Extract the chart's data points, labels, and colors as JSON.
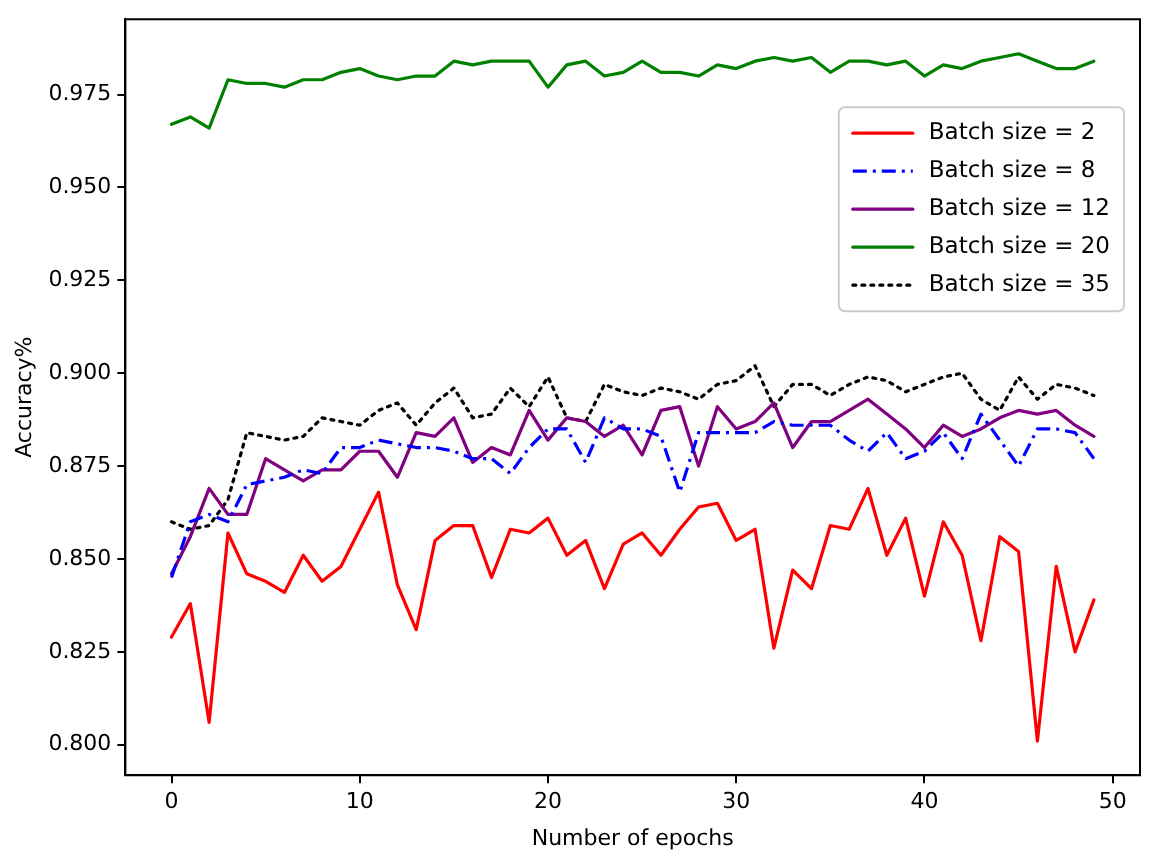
{
  "chart_data": {
    "type": "line",
    "xlabel": "Number of epochs",
    "ylabel": "Accuracy%",
    "x": [
      0,
      1,
      2,
      3,
      4,
      5,
      6,
      7,
      8,
      9,
      10,
      11,
      12,
      13,
      14,
      15,
      16,
      17,
      18,
      19,
      20,
      21,
      22,
      23,
      24,
      25,
      26,
      27,
      28,
      29,
      30,
      31,
      32,
      33,
      34,
      35,
      36,
      37,
      38,
      39,
      40,
      41,
      42,
      43,
      44,
      45,
      46,
      47,
      48,
      49
    ],
    "xlim": [
      -2.45,
      51.45
    ],
    "xticks": [
      0,
      10,
      20,
      30,
      40,
      50
    ],
    "ylim": [
      0.7918,
      0.9953
    ],
    "yticks": [
      {
        "value": 0.8,
        "label": "0.800"
      },
      {
        "value": 0.825,
        "label": "0.825"
      },
      {
        "value": 0.85,
        "label": "0.850"
      },
      {
        "value": 0.875,
        "label": "0.875"
      },
      {
        "value": 0.9,
        "label": "0.900"
      },
      {
        "value": 0.925,
        "label": "0.925"
      },
      {
        "value": 0.95,
        "label": "0.950"
      },
      {
        "value": 0.975,
        "label": "0.975"
      }
    ],
    "grid": false,
    "legend": "top right",
    "marker": "none",
    "series": [
      {
        "name": "Batch size = 2",
        "color": "#ff0000",
        "line_style": "solid",
        "values": [
          0.829,
          0.838,
          0.806,
          0.857,
          0.846,
          0.844,
          0.841,
          0.851,
          0.844,
          0.848,
          0.858,
          0.868,
          0.843,
          0.831,
          0.855,
          0.859,
          0.859,
          0.845,
          0.858,
          0.857,
          0.861,
          0.851,
          0.855,
          0.842,
          0.854,
          0.857,
          0.851,
          0.858,
          0.864,
          0.865,
          0.855,
          0.858,
          0.826,
          0.847,
          0.842,
          0.859,
          0.858,
          0.869,
          0.851,
          0.861,
          0.84,
          0.86,
          0.851,
          0.828,
          0.856,
          0.852,
          0.801,
          0.848,
          0.825,
          0.839
        ]
      },
      {
        "name": "Batch size = 8",
        "color": "#0000ff",
        "line_style": "dashdot",
        "values": [
          0.845,
          0.86,
          0.862,
          0.86,
          0.87,
          0.871,
          0.872,
          0.874,
          0.873,
          0.88,
          0.88,
          0.882,
          0.881,
          0.88,
          0.88,
          0.879,
          0.877,
          0.877,
          0.873,
          0.88,
          0.885,
          0.885,
          0.876,
          0.888,
          0.885,
          0.885,
          0.883,
          0.868,
          0.884,
          0.884,
          0.884,
          0.884,
          0.887,
          0.886,
          0.886,
          0.886,
          0.882,
          0.879,
          0.884,
          0.877,
          0.879,
          0.884,
          0.877,
          0.889,
          0.882,
          0.875,
          0.885,
          0.885,
          0.884,
          0.877
        ]
      },
      {
        "name": "Batch size = 12",
        "color": "#800080",
        "line_style": "solid",
        "values": [
          0.846,
          0.856,
          0.869,
          0.862,
          0.862,
          0.877,
          0.874,
          0.871,
          0.874,
          0.874,
          0.879,
          0.879,
          0.872,
          0.884,
          0.883,
          0.888,
          0.876,
          0.88,
          0.878,
          0.89,
          0.882,
          0.888,
          0.887,
          0.883,
          0.886,
          0.878,
          0.89,
          0.891,
          0.875,
          0.891,
          0.885,
          0.887,
          0.892,
          0.88,
          0.887,
          0.887,
          0.89,
          0.893,
          0.889,
          0.885,
          0.88,
          0.886,
          0.883,
          0.885,
          0.888,
          0.89,
          0.889,
          0.89,
          0.886,
          0.883
        ]
      },
      {
        "name": "Batch size = 20",
        "color": "#008000",
        "line_style": "solid",
        "values": [
          0.967,
          0.969,
          0.966,
          0.979,
          0.978,
          0.978,
          0.977,
          0.979,
          0.979,
          0.981,
          0.982,
          0.98,
          0.979,
          0.98,
          0.98,
          0.984,
          0.983,
          0.984,
          0.984,
          0.984,
          0.977,
          0.983,
          0.984,
          0.98,
          0.981,
          0.984,
          0.981,
          0.981,
          0.98,
          0.983,
          0.982,
          0.984,
          0.985,
          0.984,
          0.985,
          0.981,
          0.984,
          0.984,
          0.983,
          0.984,
          0.98,
          0.983,
          0.982,
          0.984,
          0.985,
          0.986,
          0.984,
          0.982,
          0.982,
          0.984
        ]
      },
      {
        "name": "Batch size = 35",
        "color": "#000000",
        "line_style": "dotted",
        "values": [
          0.86,
          0.858,
          0.859,
          0.866,
          0.884,
          0.883,
          0.882,
          0.883,
          0.888,
          0.887,
          0.886,
          0.89,
          0.892,
          0.886,
          0.892,
          0.896,
          0.888,
          0.889,
          0.896,
          0.891,
          0.899,
          0.888,
          0.887,
          0.897,
          0.895,
          0.894,
          0.896,
          0.895,
          0.893,
          0.897,
          0.898,
          0.902,
          0.891,
          0.897,
          0.897,
          0.894,
          0.897,
          0.899,
          0.898,
          0.895,
          0.897,
          0.899,
          0.9,
          0.893,
          0.89,
          0.899,
          0.893,
          0.897,
          0.896,
          0.894
        ]
      }
    ]
  }
}
